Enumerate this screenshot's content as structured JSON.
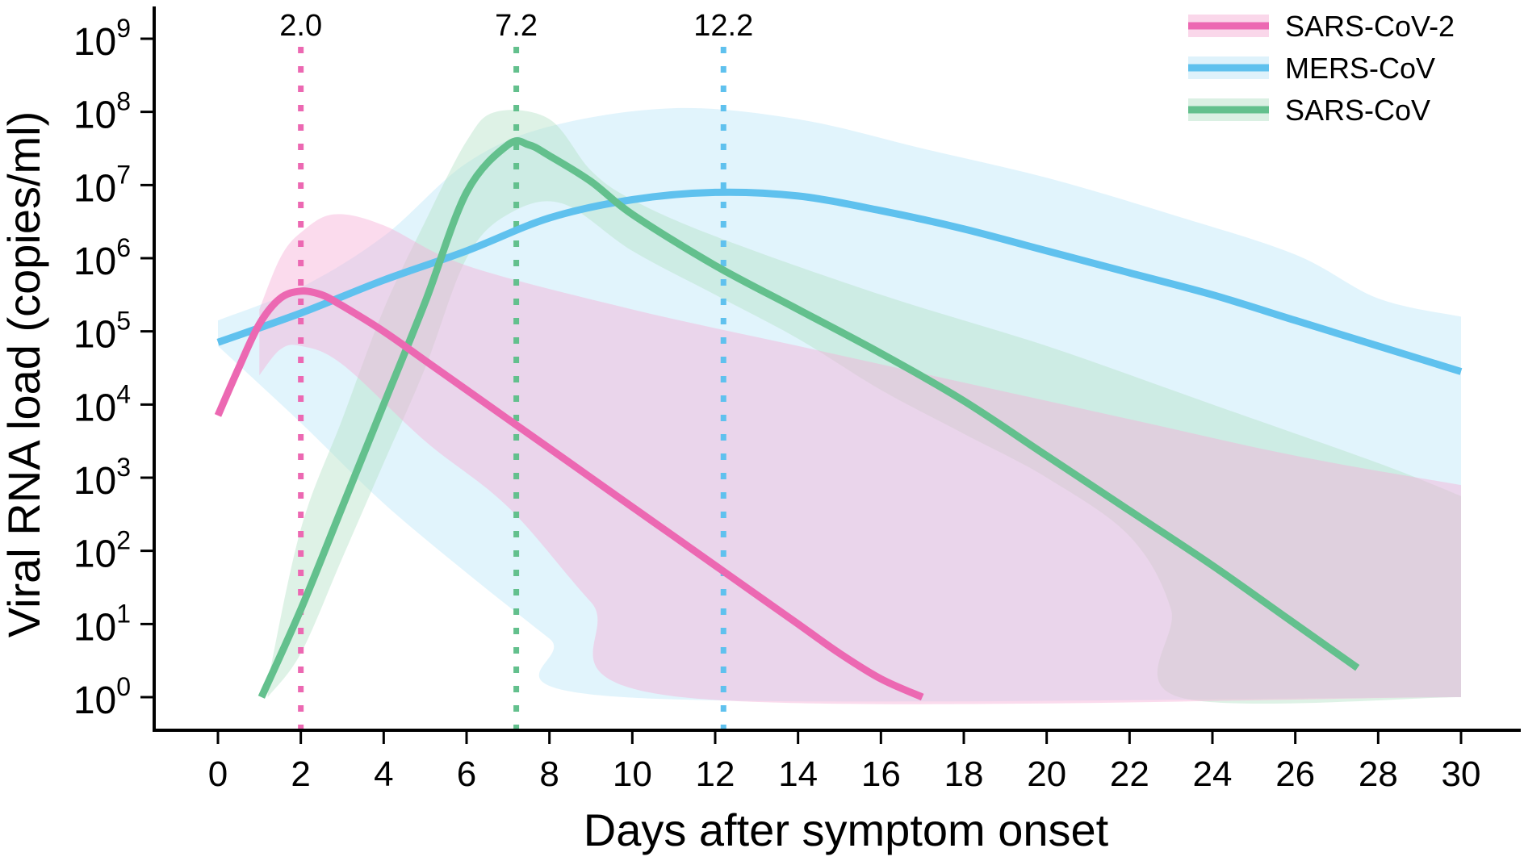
{
  "chart_data": {
    "type": "line",
    "xlabel": "Days after symptom onset",
    "ylabel": "Viral RNA load (copies/ml)",
    "xlim": [
      -0.8,
      31.5
    ],
    "ylim_log10": [
      -0.45,
      9.4
    ],
    "y_scale": "log10",
    "x_ticks": [
      0,
      2,
      4,
      6,
      8,
      10,
      12,
      14,
      16,
      18,
      20,
      22,
      24,
      26,
      28,
      30
    ],
    "y_ticks_exponent": [
      0,
      1,
      2,
      3,
      4,
      5,
      6,
      7,
      8,
      9
    ],
    "y_tick_base": "10",
    "grid": false,
    "legend_position": "top-right",
    "series": [
      {
        "name": "SARS-CoV-2",
        "color": "#ec68b2",
        "band_color": "#f6b0d6",
        "peak_day": 2.0,
        "peak_label": "2.0",
        "x": [
          0,
          0.5,
          1,
          1.5,
          2,
          2.5,
          3,
          4,
          5,
          6,
          7,
          8,
          9,
          10,
          11,
          12,
          13,
          14,
          15,
          16,
          17
        ],
        "log10_y": [
          3.85,
          4.5,
          5.1,
          5.45,
          5.55,
          5.5,
          5.35,
          5.0,
          4.6,
          4.2,
          3.8,
          3.4,
          3.0,
          2.6,
          2.2,
          1.8,
          1.4,
          1.0,
          0.6,
          0.25,
          0.0
        ],
        "band_upper_log10": [
          [
            1,
            5.3
          ],
          [
            1.5,
            6.0
          ],
          [
            2,
            6.35
          ],
          [
            2.8,
            6.6
          ],
          [
            4,
            6.45
          ],
          [
            6,
            5.9
          ],
          [
            10,
            5.3
          ],
          [
            14,
            4.8
          ],
          [
            18,
            4.3
          ],
          [
            22,
            3.8
          ],
          [
            26,
            3.3
          ],
          [
            30,
            2.9
          ]
        ],
        "band_lower_log10": [
          [
            1,
            4.4
          ],
          [
            1.5,
            4.75
          ],
          [
            2,
            4.8
          ],
          [
            3,
            4.55
          ],
          [
            5,
            3.5
          ],
          [
            7,
            2.6
          ],
          [
            9,
            1.3
          ],
          [
            11.2,
            0.0
          ],
          [
            30,
            0.0
          ]
        ]
      },
      {
        "name": "MERS-CoV",
        "color": "#5fc1ee",
        "band_color": "#bde6f8",
        "peak_day": 12.2,
        "peak_label": "12.2",
        "x": [
          0,
          2,
          4,
          6,
          8,
          10,
          12,
          14,
          16,
          18,
          20,
          22,
          24,
          26,
          28,
          30
        ],
        "log10_y": [
          4.85,
          5.25,
          5.7,
          6.1,
          6.55,
          6.8,
          6.9,
          6.85,
          6.65,
          6.4,
          6.1,
          5.8,
          5.5,
          5.15,
          4.8,
          4.45
        ],
        "band_upper_log10": [
          [
            0,
            5.15
          ],
          [
            2,
            5.6
          ],
          [
            4,
            6.3
          ],
          [
            6,
            7.3
          ],
          [
            8,
            7.8
          ],
          [
            11,
            8.05
          ],
          [
            14,
            7.9
          ],
          [
            17,
            7.5
          ],
          [
            20,
            7.1
          ],
          [
            23,
            6.6
          ],
          [
            26,
            6.05
          ],
          [
            28,
            5.45
          ],
          [
            30,
            5.2
          ]
        ],
        "band_lower_log10": [
          [
            0,
            4.8
          ],
          [
            2,
            3.75
          ],
          [
            4,
            2.65
          ],
          [
            6,
            1.7
          ],
          [
            8,
            0.8
          ],
          [
            9.8,
            0.0
          ],
          [
            30,
            0.0
          ]
        ]
      },
      {
        "name": "SARS-CoV",
        "color": "#63c08d",
        "band_color": "#b6e2c7",
        "peak_day": 7.2,
        "peak_label": "7.2",
        "x": [
          1.05,
          2,
          3,
          4,
          5,
          6,
          7,
          7.5,
          8,
          9,
          10,
          12,
          14,
          16,
          18,
          20,
          22,
          24,
          26,
          27.5
        ],
        "log10_y": [
          0.0,
          1.2,
          2.6,
          4.0,
          5.4,
          6.9,
          7.55,
          7.55,
          7.4,
          7.05,
          6.6,
          5.9,
          5.3,
          4.7,
          4.05,
          3.3,
          2.55,
          1.8,
          1.0,
          0.4
        ],
        "band_upper_log10": [
          [
            1.2,
            0.2
          ],
          [
            2,
            2.3
          ],
          [
            3,
            3.8
          ],
          [
            4,
            5.3
          ],
          [
            5,
            6.5
          ],
          [
            6,
            7.6
          ],
          [
            6.7,
            8.0
          ],
          [
            8,
            7.9
          ],
          [
            9,
            7.2
          ],
          [
            10,
            6.8
          ],
          [
            12,
            6.3
          ],
          [
            16,
            5.5
          ],
          [
            20,
            4.8
          ],
          [
            24,
            4.0
          ],
          [
            28,
            3.2
          ],
          [
            30,
            2.75
          ]
        ],
        "band_lower_log10": [
          [
            1.2,
            0.0
          ],
          [
            2,
            0.6
          ],
          [
            3,
            1.9
          ],
          [
            4,
            3.2
          ],
          [
            5,
            4.5
          ],
          [
            6,
            6.0
          ],
          [
            7,
            6.6
          ],
          [
            8.3,
            6.75
          ],
          [
            10,
            6.1
          ],
          [
            12,
            5.5
          ],
          [
            14,
            4.9
          ],
          [
            16,
            4.2
          ],
          [
            18,
            3.6
          ],
          [
            20,
            3.0
          ],
          [
            22,
            2.2
          ],
          [
            23,
            1.2
          ],
          [
            23.2,
            0.0
          ],
          [
            30,
            0.0
          ]
        ]
      }
    ]
  }
}
